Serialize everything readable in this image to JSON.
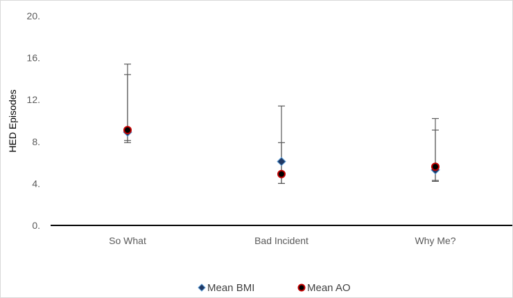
{
  "chart_data": {
    "type": "scatter",
    "title": "",
    "xlabel": "",
    "ylabel": "HED Episodes",
    "ylim": [
      0,
      20
    ],
    "yticks": [
      "0.",
      "4.",
      "8.",
      "12.",
      "16.",
      "20."
    ],
    "categories": [
      "So What",
      "Bad Incident",
      "Why Me?"
    ],
    "grid": false,
    "legend_position": "bottom",
    "series": [
      {
        "name": "Mean BMI",
        "marker": "diamond",
        "color": "#1f3864",
        "values": [
          8.9,
          6.1,
          5.3
        ],
        "error_low": [
          8.1,
          4.0,
          4.3
        ],
        "error_high": [
          14.4,
          7.9,
          9.1
        ]
      },
      {
        "name": "Mean AO",
        "marker": "circle",
        "color": "#000000",
        "edge_color": "#c00000",
        "values": [
          9.1,
          4.9,
          5.6
        ],
        "error_low": [
          7.9,
          4.0,
          4.2
        ],
        "error_high": [
          15.4,
          11.4,
          10.2
        ]
      }
    ]
  }
}
